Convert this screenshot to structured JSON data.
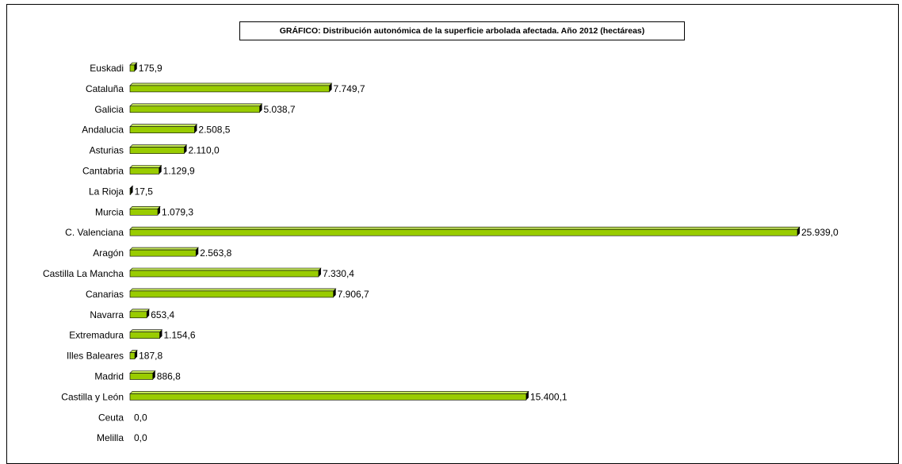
{
  "chart_data": {
    "type": "bar",
    "orientation": "horizontal",
    "title": "GRÁFICO: Distribución autonómica de la superficie arbolada afectada. Año 2012 (hectáreas)",
    "categories": [
      "Euskadi",
      "Cataluña",
      "Galicia",
      "Andalucia",
      "Asturias",
      "Cantabria",
      "La Rioja",
      "Murcia",
      "C. Valenciana",
      "Aragón",
      "Castilla La Mancha",
      "Canarias",
      "Navarra",
      "Extremadura",
      "Illes Baleares",
      "Madrid",
      "Castilla y León",
      "Ceuta",
      "Melilla"
    ],
    "values": [
      175.9,
      7749.7,
      5038.7,
      2508.5,
      2110.0,
      1129.9,
      17.5,
      1079.3,
      25939.0,
      2563.8,
      7330.4,
      7906.7,
      653.4,
      1154.6,
      187.8,
      886.8,
      15400.1,
      0.0,
      0.0
    ],
    "value_labels": [
      "175,9",
      "7.749,7",
      "5.038,7",
      "2.508,5",
      "2.110,0",
      "1.129,9",
      "17,5",
      "1.079,3",
      "25.939,0",
      "2.563,8",
      "7.330,4",
      "7.906,7",
      "653,4",
      "1.154,6",
      "187,8",
      "886,8",
      "15.400,1",
      "0,0",
      "0,0"
    ],
    "bar_color": "#99cc00",
    "grid": false,
    "legend": "none"
  }
}
